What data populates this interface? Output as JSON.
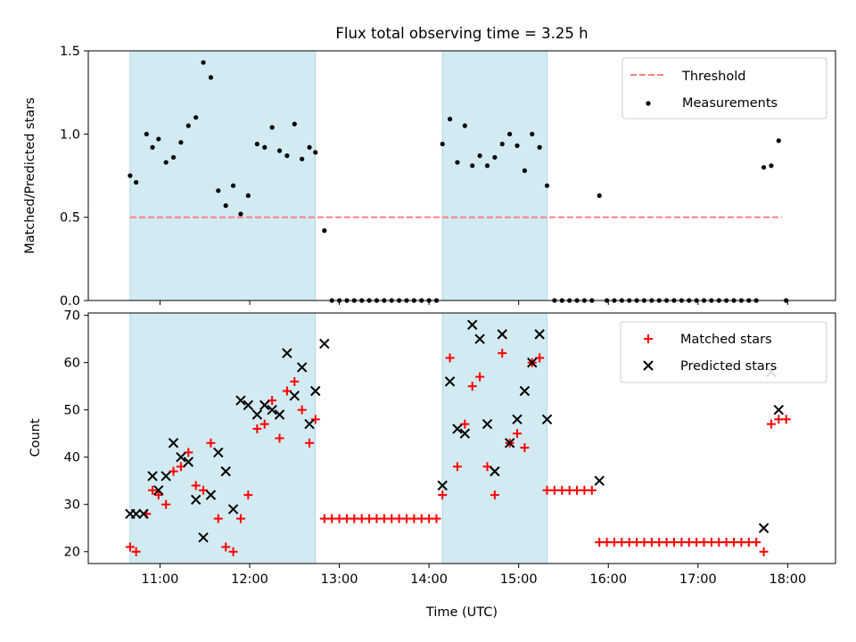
{
  "title": "Flux total observing time = 3.25 h",
  "colors": {
    "shade": "#add8e6",
    "threshold": "#ff8080",
    "matched": "#ff0000",
    "predicted": "#000000",
    "measurement": "#000000"
  },
  "chart_data": [
    {
      "type": "scatter",
      "ylabel": "Matched/Predicted stars",
      "ylim": [
        0,
        1.5
      ],
      "yticks": [
        "0.0",
        "0.5",
        "1.0",
        "1.5"
      ],
      "shaded_intervals": [
        [
          "10:40",
          "12:44"
        ],
        [
          "14:09",
          "15:19"
        ]
      ],
      "threshold": {
        "name": "Threshold",
        "value": 0.5,
        "x_range": [
          "10:40",
          "17:56"
        ]
      },
      "legend_position": "upper right",
      "series": [
        {
          "name": "Measurements",
          "points": [
            [
              "10:40",
              0.75
            ],
            [
              "10:44",
              0.71
            ],
            [
              "10:51",
              1.0
            ],
            [
              "10:55",
              0.92
            ],
            [
              "10:59",
              0.97
            ],
            [
              "11:04",
              0.83
            ],
            [
              "11:09",
              0.86
            ],
            [
              "11:14",
              0.95
            ],
            [
              "11:19",
              1.05
            ],
            [
              "11:24",
              1.1
            ],
            [
              "11:29",
              1.43
            ],
            [
              "11:34",
              1.34
            ],
            [
              "11:39",
              0.66
            ],
            [
              "11:44",
              0.57
            ],
            [
              "11:49",
              0.69
            ],
            [
              "11:54",
              0.52
            ],
            [
              "11:59",
              0.63
            ],
            [
              "12:05",
              0.94
            ],
            [
              "12:10",
              0.92
            ],
            [
              "12:15",
              1.04
            ],
            [
              "12:20",
              0.9
            ],
            [
              "12:25",
              0.87
            ],
            [
              "12:30",
              1.06
            ],
            [
              "12:35",
              0.85
            ],
            [
              "12:40",
              0.92
            ],
            [
              "12:44",
              0.89
            ],
            [
              "12:50",
              0.42
            ],
            [
              "12:55",
              0
            ],
            [
              "13:00",
              0
            ],
            [
              "13:05",
              0
            ],
            [
              "13:10",
              0
            ],
            [
              "13:15",
              0
            ],
            [
              "13:20",
              0
            ],
            [
              "13:25",
              0
            ],
            [
              "13:30",
              0
            ],
            [
              "13:35",
              0
            ],
            [
              "13:40",
              0
            ],
            [
              "13:45",
              0
            ],
            [
              "13:50",
              0
            ],
            [
              "13:55",
              0
            ],
            [
              "14:00",
              0
            ],
            [
              "14:05",
              0
            ],
            [
              "14:09",
              0.94
            ],
            [
              "14:14",
              1.09
            ],
            [
              "14:19",
              0.83
            ],
            [
              "14:24",
              1.05
            ],
            [
              "14:29",
              0.81
            ],
            [
              "14:34",
              0.87
            ],
            [
              "14:39",
              0.81
            ],
            [
              "14:44",
              0.86
            ],
            [
              "14:49",
              0.94
            ],
            [
              "14:54",
              1.0
            ],
            [
              "14:59",
              0.93
            ],
            [
              "15:04",
              0.78
            ],
            [
              "15:09",
              1.0
            ],
            [
              "15:14",
              0.92
            ],
            [
              "15:19",
              0.69
            ],
            [
              "15:24",
              0
            ],
            [
              "15:29",
              0
            ],
            [
              "15:34",
              0
            ],
            [
              "15:39",
              0
            ],
            [
              "15:44",
              0
            ],
            [
              "15:49",
              0
            ],
            [
              "15:54",
              0.63
            ],
            [
              "15:59",
              0
            ],
            [
              "16:04",
              0
            ],
            [
              "16:09",
              0
            ],
            [
              "16:14",
              0
            ],
            [
              "16:19",
              0
            ],
            [
              "16:24",
              0
            ],
            [
              "16:29",
              0
            ],
            [
              "16:34",
              0
            ],
            [
              "16:39",
              0
            ],
            [
              "16:44",
              0
            ],
            [
              "16:49",
              0
            ],
            [
              "16:54",
              0
            ],
            [
              "16:59",
              0
            ],
            [
              "17:04",
              0
            ],
            [
              "17:09",
              0
            ],
            [
              "17:14",
              0
            ],
            [
              "17:19",
              0
            ],
            [
              "17:24",
              0
            ],
            [
              "17:29",
              0
            ],
            [
              "17:34",
              0
            ],
            [
              "17:39",
              0
            ],
            [
              "17:44",
              0.8
            ],
            [
              "17:49",
              0.81
            ],
            [
              "17:54",
              0.96
            ],
            [
              "17:59",
              0
            ]
          ]
        }
      ]
    },
    {
      "type": "scatter",
      "xlabel": "Time (UTC)",
      "ylabel": "Count",
      "ylim": [
        17.5,
        70.5
      ],
      "yticks": [
        "20",
        "30",
        "40",
        "50",
        "60",
        "70"
      ],
      "xticks": [
        "11:00",
        "12:00",
        "13:00",
        "14:00",
        "15:00",
        "16:00",
        "17:00",
        "18:00"
      ],
      "xlim": [
        "10:12",
        "18:32"
      ],
      "shaded_intervals": [
        [
          "10:40",
          "12:44"
        ],
        [
          "14:09",
          "15:19"
        ]
      ],
      "legend_position": "upper right",
      "series": [
        {
          "name": "Matched stars",
          "marker": "+",
          "points": [
            [
              "10:40",
              21
            ],
            [
              "10:44",
              20
            ],
            [
              "10:51",
              28
            ],
            [
              "10:55",
              33
            ],
            [
              "10:59",
              32
            ],
            [
              "11:04",
              30
            ],
            [
              "11:09",
              37
            ],
            [
              "11:14",
              38
            ],
            [
              "11:19",
              41
            ],
            [
              "11:24",
              34
            ],
            [
              "11:29",
              33
            ],
            [
              "11:34",
              43
            ],
            [
              "11:39",
              27
            ],
            [
              "11:44",
              21
            ],
            [
              "11:49",
              20
            ],
            [
              "11:54",
              27
            ],
            [
              "11:59",
              32
            ],
            [
              "12:05",
              46
            ],
            [
              "12:10",
              47
            ],
            [
              "12:15",
              52
            ],
            [
              "12:20",
              44
            ],
            [
              "12:25",
              54
            ],
            [
              "12:30",
              56
            ],
            [
              "12:35",
              50
            ],
            [
              "12:40",
              43
            ],
            [
              "12:44",
              48
            ],
            [
              "12:50",
              27
            ],
            [
              "12:55",
              27
            ],
            [
              "13:00",
              27
            ],
            [
              "13:05",
              27
            ],
            [
              "13:10",
              27
            ],
            [
              "13:15",
              27
            ],
            [
              "13:20",
              27
            ],
            [
              "13:25",
              27
            ],
            [
              "13:30",
              27
            ],
            [
              "13:35",
              27
            ],
            [
              "13:40",
              27
            ],
            [
              "13:45",
              27
            ],
            [
              "13:50",
              27
            ],
            [
              "13:55",
              27
            ],
            [
              "14:00",
              27
            ],
            [
              "14:05",
              27
            ],
            [
              "14:09",
              32
            ],
            [
              "14:14",
              61
            ],
            [
              "14:19",
              38
            ],
            [
              "14:24",
              47
            ],
            [
              "14:29",
              55
            ],
            [
              "14:34",
              57
            ],
            [
              "14:39",
              38
            ],
            [
              "14:44",
              32
            ],
            [
              "14:49",
              62
            ],
            [
              "14:54",
              43
            ],
            [
              "14:59",
              45
            ],
            [
              "15:04",
              42
            ],
            [
              "15:09",
              60
            ],
            [
              "15:14",
              61
            ],
            [
              "15:19",
              33
            ],
            [
              "15:24",
              33
            ],
            [
              "15:29",
              33
            ],
            [
              "15:34",
              33
            ],
            [
              "15:39",
              33
            ],
            [
              "15:44",
              33
            ],
            [
              "15:49",
              33
            ],
            [
              "15:54",
              22
            ],
            [
              "15:59",
              22
            ],
            [
              "16:04",
              22
            ],
            [
              "16:09",
              22
            ],
            [
              "16:14",
              22
            ],
            [
              "16:19",
              22
            ],
            [
              "16:24",
              22
            ],
            [
              "16:29",
              22
            ],
            [
              "16:34",
              22
            ],
            [
              "16:39",
              22
            ],
            [
              "16:44",
              22
            ],
            [
              "16:49",
              22
            ],
            [
              "16:54",
              22
            ],
            [
              "16:59",
              22
            ],
            [
              "17:04",
              22
            ],
            [
              "17:09",
              22
            ],
            [
              "17:14",
              22
            ],
            [
              "17:19",
              22
            ],
            [
              "17:24",
              22
            ],
            [
              "17:29",
              22
            ],
            [
              "17:34",
              22
            ],
            [
              "17:39",
              22
            ],
            [
              "17:44",
              20
            ],
            [
              "17:49",
              47
            ],
            [
              "17:54",
              48
            ],
            [
              "17:59",
              48
            ]
          ]
        },
        {
          "name": "Predicted stars",
          "marker": "x",
          "points": [
            [
              "10:40",
              28
            ],
            [
              "10:44",
              28
            ],
            [
              "10:49",
              28
            ],
            [
              "10:55",
              36
            ],
            [
              "10:59",
              33
            ],
            [
              "11:04",
              36
            ],
            [
              "11:09",
              43
            ],
            [
              "11:14",
              40
            ],
            [
              "11:19",
              39
            ],
            [
              "11:24",
              31
            ],
            [
              "11:29",
              23
            ],
            [
              "11:34",
              32
            ],
            [
              "11:39",
              41
            ],
            [
              "11:44",
              37
            ],
            [
              "11:49",
              29
            ],
            [
              "11:54",
              52
            ],
            [
              "11:59",
              51
            ],
            [
              "12:05",
              49
            ],
            [
              "12:10",
              51
            ],
            [
              "12:15",
              50
            ],
            [
              "12:20",
              49
            ],
            [
              "12:25",
              62
            ],
            [
              "12:30",
              53
            ],
            [
              "12:35",
              59
            ],
            [
              "12:40",
              47
            ],
            [
              "12:44",
              54
            ],
            [
              "12:50",
              64
            ],
            [
              "14:09",
              34
            ],
            [
              "14:14",
              56
            ],
            [
              "14:19",
              46
            ],
            [
              "14:24",
              45
            ],
            [
              "14:29",
              68
            ],
            [
              "14:34",
              65
            ],
            [
              "14:39",
              47
            ],
            [
              "14:44",
              37
            ],
            [
              "14:49",
              66
            ],
            [
              "14:54",
              43
            ],
            [
              "14:59",
              48
            ],
            [
              "15:04",
              54
            ],
            [
              "15:09",
              60
            ],
            [
              "15:14",
              66
            ],
            [
              "15:19",
              48
            ],
            [
              "15:54",
              35
            ],
            [
              "17:44",
              25
            ],
            [
              "17:49",
              58
            ],
            [
              "17:54",
              50
            ]
          ]
        }
      ]
    }
  ]
}
